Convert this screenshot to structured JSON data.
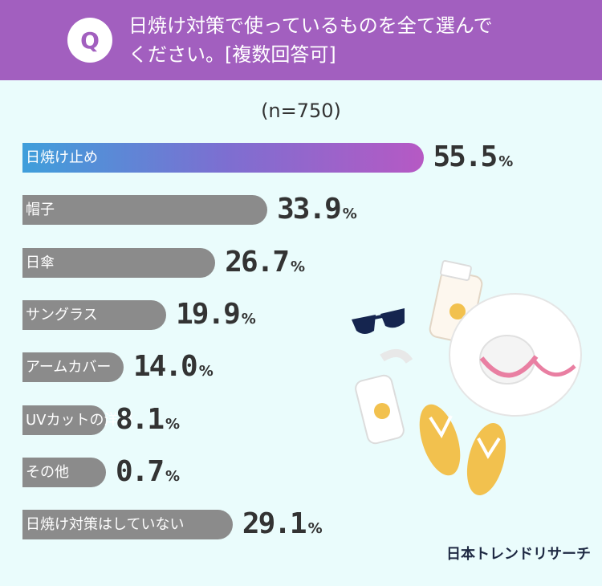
{
  "header": {
    "badge": "Q",
    "question_line1": "日焼け対策で使っているものを全て選んで",
    "question_line2": "ください。[複数回答可]"
  },
  "chart_data": {
    "type": "bar",
    "orientation": "horizontal",
    "subtitle": "(n=750)",
    "unit": "%",
    "categories": [
      "日焼け止め",
      "帽子",
      "日傘",
      "サングラス",
      "アームカバー",
      "UVカットの洋服",
      "その他",
      "日焼け対策はしていない"
    ],
    "values": [
      55.5,
      33.9,
      26.7,
      19.9,
      14.0,
      8.1,
      0.7,
      29.1
    ],
    "value_labels": [
      "55.5",
      "33.9",
      "26.7",
      "19.9",
      "14.0",
      "8.1",
      "0.7",
      "29.1"
    ],
    "highlight_index": 0,
    "colors": {
      "highlight_start": "#3f9fdb",
      "highlight_end": "#b659c4",
      "default": "#8b8b8b"
    }
  },
  "footer": {
    "brand": "日本トレンドリサーチ"
  },
  "colors": {
    "header_bg": "#a25fbf",
    "page_bg": "#eafcfc"
  }
}
